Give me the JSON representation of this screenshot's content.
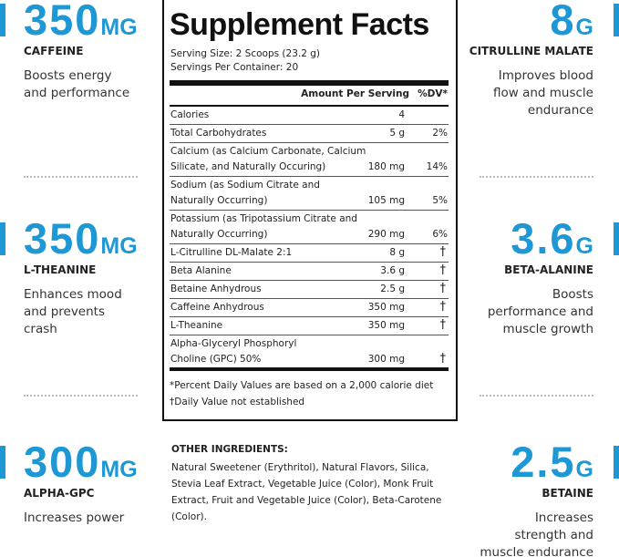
{
  "left": [
    {
      "amount": "350",
      "unit": "MG",
      "name": "CAFFEINE",
      "description": [
        "Boosts energy",
        "and performance"
      ]
    },
    {
      "amount": "350",
      "unit": "MG",
      "name": "L-THEANINE",
      "description": [
        "Enhances mood",
        "and prevents",
        "crash"
      ]
    },
    {
      "amount": "300",
      "unit": "MG",
      "name": "ALPHA-GPC",
      "description": [
        "Increases power"
      ]
    }
  ],
  "right": [
    {
      "amount": "8",
      "unit": "G",
      "name": "CITRULLINE MALATE",
      "description": [
        "Improves blood",
        "flow and muscle",
        "endurance"
      ]
    },
    {
      "amount": "3.6",
      "unit": "G",
      "name": "BETA-ALANINE",
      "description": [
        "Boosts",
        "performance and",
        "muscle growth"
      ]
    },
    {
      "amount": "2.5",
      "unit": "G",
      "name": "BETAINE",
      "description": [
        "Increases",
        "strength and",
        "muscle endurance"
      ]
    }
  ],
  "facts": {
    "title": "Supplement Facts",
    "serving_size": "Serving Size: 2 Scoops (23.2 g)",
    "servings": "Servings Per Container: 20",
    "header": {
      "amount": "Amount Per Serving",
      "dv": "%DV*"
    },
    "rows": [
      {
        "name": [
          "Calories"
        ],
        "amount": "4"
      },
      {
        "name": [
          "Total Carbohydrates"
        ],
        "amount": "5 g",
        "dv": "2%"
      },
      {
        "name": [
          "Calcium (as Calcium Carbonate, Calcium",
          "Silicate, and Naturally Occuring)"
        ],
        "amount": "180 mg",
        "dv": "14%"
      },
      {
        "name": [
          "Sodium (as Sodium Citrate and",
          "Naturally Occurring)"
        ],
        "amount": "105 mg",
        "dv": "5%"
      },
      {
        "name": [
          "Potassium (as Tripotassium Citrate and",
          "Naturally Occurring)"
        ],
        "amount": "290 mg",
        "dv": "6%"
      },
      {
        "name": [
          "L-Citrulline DL-Malate 2:1"
        ],
        "amount": "8 g",
        "dv": "†"
      },
      {
        "name": [
          "Beta Alanine"
        ],
        "amount": "3.6 g",
        "dv": "†"
      },
      {
        "name": [
          "Betaine Anhydrous"
        ],
        "amount": "2.5 g",
        "dv": "†"
      },
      {
        "name": [
          "Caffeine Anhydrous"
        ],
        "amount": "350 mg",
        "dv": "†"
      },
      {
        "name": [
          "L-Theanine"
        ],
        "amount": "350 mg",
        "dv": "†"
      },
      {
        "name": [
          "Alpha-Glyceryl Phosphoryl",
          "Choline (GPC) 50%"
        ],
        "amount": "300 mg",
        "dv": "†"
      }
    ],
    "footnotes": [
      "*Percent Daily Values are based on a 2,000 calorie diet",
      "†Daily Value not established"
    ]
  },
  "other_ingredients": {
    "heading": "OTHER INGREDIENTS:",
    "lines": [
      "Natural Sweetener (Erythritol), Natural Flavors, Silica,",
      "Stevia Leaf Extract, Vegetable Juice (Color), Monk Fruit",
      "Extract, Fruit and Vegetable Juice (Color), Beta-Carotene",
      "(Color)."
    ]
  }
}
